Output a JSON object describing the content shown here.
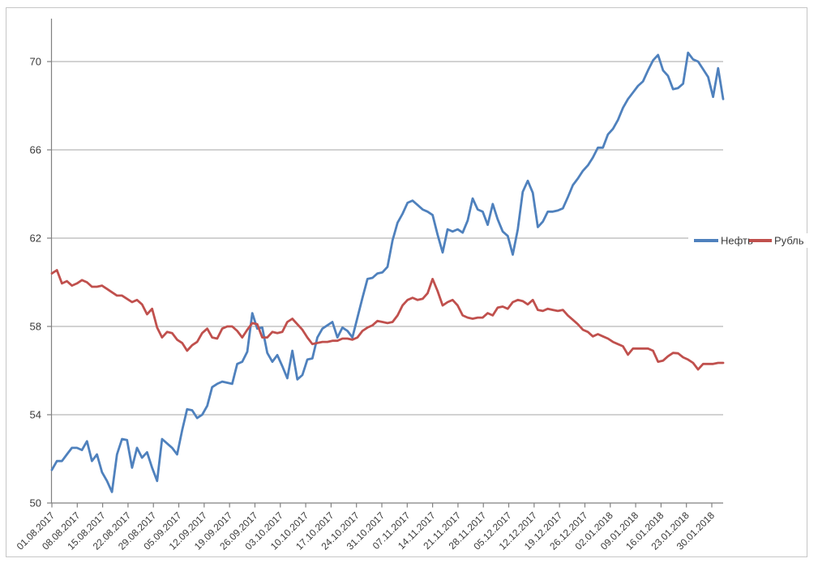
{
  "chart_data": {
    "type": "line",
    "title": "",
    "xlabel": "",
    "ylabel": "",
    "ylim": [
      50,
      71.9
    ],
    "yticks": [
      50,
      54,
      58,
      62,
      66,
      70
    ],
    "grid": true,
    "legend_position": "right-middle",
    "x_tick_labels": [
      "01.08.2017",
      "08.08.2017",
      "15.08.2017",
      "22.08.2017",
      "29.08.2017",
      "05.09.2017",
      "12.09.2017",
      "19.09.2017",
      "26.09.2017",
      "03.10.2017",
      "10.10.2017",
      "17.10.2017",
      "24.10.2017",
      "31.10.2017",
      "07.11.2017",
      "14.11.2017",
      "21.11.2017",
      "28.11.2017",
      "05.12.2017",
      "12.12.2017",
      "19.12.2017",
      "26.12.2017",
      "02.01.2018",
      "09.01.2018",
      "16.01.2018",
      "23.01.2018",
      "30.01.2018"
    ],
    "series": [
      {
        "name": "Нефть",
        "color": "#4F81BD",
        "values": [
          51.5,
          51.9,
          51.9,
          52.2,
          52.5,
          52.5,
          52.4,
          52.8,
          51.9,
          52.2,
          51.4,
          51.0,
          50.5,
          52.2,
          52.9,
          52.85,
          51.6,
          52.5,
          52.05,
          52.3,
          51.6,
          51.0,
          52.9,
          52.7,
          52.5,
          52.2,
          53.3,
          54.25,
          54.2,
          53.85,
          54.0,
          54.4,
          55.25,
          55.4,
          55.5,
          55.45,
          55.4,
          56.3,
          56.4,
          56.85,
          58.6,
          57.9,
          57.95,
          56.8,
          56.4,
          56.7,
          56.2,
          55.65,
          56.9,
          55.6,
          55.8,
          56.5,
          56.55,
          57.5,
          57.9,
          58.05,
          58.2,
          57.5,
          57.95,
          57.8,
          57.5,
          58.4,
          59.3,
          60.15,
          60.2,
          60.4,
          60.45,
          60.7,
          61.9,
          62.7,
          63.1,
          63.6,
          63.7,
          63.5,
          63.3,
          63.2,
          63.05,
          62.15,
          61.35,
          62.4,
          62.3,
          62.4,
          62.25,
          62.8,
          63.8,
          63.3,
          63.2,
          62.6,
          63.55,
          62.85,
          62.3,
          62.1,
          61.25,
          62.4,
          64.1,
          64.6,
          64.05,
          62.5,
          62.75,
          63.2,
          63.2,
          63.25,
          63.35,
          63.85,
          64.4,
          64.7,
          65.05,
          65.3,
          65.65,
          66.1,
          66.1,
          66.7,
          66.95,
          67.35,
          67.9,
          68.3,
          68.6,
          68.9,
          69.1,
          69.6,
          70.05,
          70.3,
          69.6,
          69.35,
          68.75,
          68.8,
          69.0,
          70.4,
          70.1,
          70.0,
          69.65,
          69.3,
          68.4,
          69.7,
          68.3
        ]
      },
      {
        "name": "Рубль",
        "color": "#C0504D",
        "values": [
          60.4,
          60.55,
          59.95,
          60.05,
          59.85,
          59.95,
          60.1,
          60.0,
          59.8,
          59.8,
          59.85,
          59.7,
          59.55,
          59.4,
          59.4,
          59.25,
          59.1,
          59.2,
          59.0,
          58.55,
          58.8,
          57.95,
          57.5,
          57.75,
          57.7,
          57.4,
          57.25,
          56.9,
          57.15,
          57.3,
          57.7,
          57.9,
          57.5,
          57.45,
          57.9,
          58.0,
          58.0,
          57.8,
          57.5,
          57.85,
          58.15,
          58.1,
          57.5,
          57.5,
          57.75,
          57.7,
          57.75,
          58.2,
          58.35,
          58.1,
          57.85,
          57.5,
          57.2,
          57.25,
          57.3,
          57.3,
          57.35,
          57.35,
          57.45,
          57.45,
          57.4,
          57.5,
          57.8,
          57.95,
          58.05,
          58.25,
          58.2,
          58.15,
          58.2,
          58.5,
          58.95,
          59.2,
          59.3,
          59.2,
          59.25,
          59.5,
          60.15,
          59.6,
          58.95,
          59.1,
          59.2,
          58.95,
          58.5,
          58.4,
          58.35,
          58.4,
          58.4,
          58.6,
          58.5,
          58.85,
          58.9,
          58.8,
          59.1,
          59.2,
          59.15,
          59.0,
          59.2,
          58.75,
          58.7,
          58.8,
          58.75,
          58.7,
          58.75,
          58.5,
          58.3,
          58.1,
          57.85,
          57.75,
          57.55,
          57.65,
          57.55,
          57.45,
          57.3,
          57.2,
          57.1,
          56.72,
          57.0,
          57.0,
          57.0,
          57.0,
          56.9,
          56.4,
          56.45,
          56.65,
          56.8,
          56.78,
          56.6,
          56.5,
          56.35,
          56.05,
          56.3,
          56.3,
          56.3,
          56.35,
          56.35
        ]
      }
    ]
  },
  "colors": {
    "background": "#FFFFFF",
    "gridline": "#A6A6A6",
    "axis": "#808080",
    "tick": "#808080",
    "label_text": "#3A3A3A",
    "outer_border": "#C6C6C6",
    "legend_background": "#FFFFFF"
  }
}
